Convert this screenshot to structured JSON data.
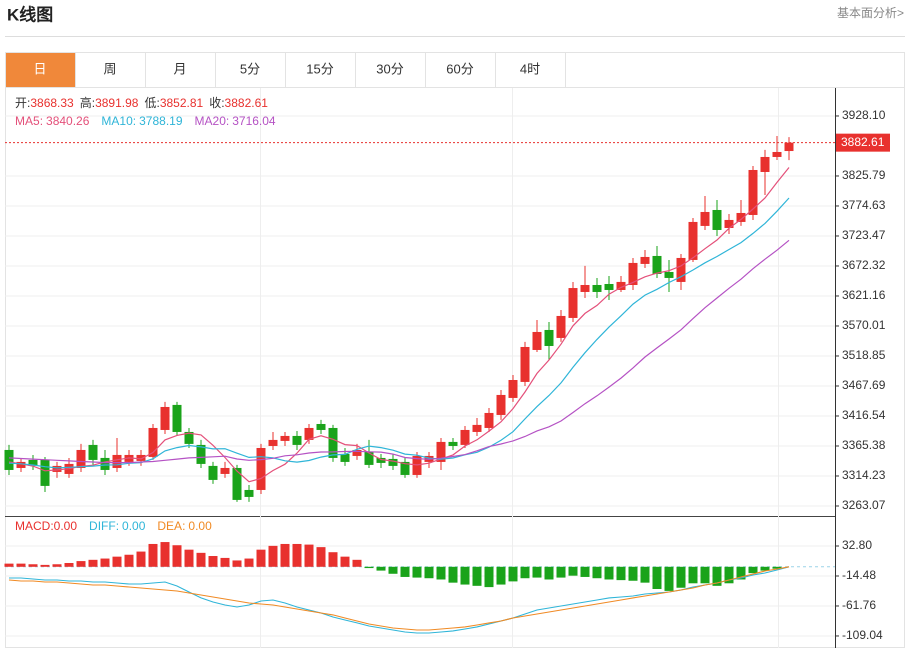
{
  "header": {
    "title": "K线图",
    "link": "基本面分析>"
  },
  "tabs": [
    "日",
    "周",
    "月",
    "5分",
    "15分",
    "30分",
    "60分",
    "4时"
  ],
  "active_tab": 0,
  "chart_data": [
    {
      "type": "candlestick",
      "up_color": "#e8312e",
      "down_color": "#1aa31a",
      "ohlc_info": [
        {
          "label": "开:",
          "value": 3868.33
        },
        {
          "label": "高:",
          "value": 3891.98
        },
        {
          "label": "低:",
          "value": 3852.81
        },
        {
          "label": "收:",
          "value": 3882.61
        }
      ],
      "separator": ":",
      "open": [
        3358.6,
        3327.9,
        3341.6,
        3341.6,
        3321.1,
        3317.7,
        3327.9,
        3367.2,
        3345.0,
        3327.9,
        3338.2,
        3339.9,
        3346.7,
        3392.7,
        3435.4,
        3389.3,
        3367.2,
        3331.4,
        3317.7,
        3327.9,
        3290.4,
        3290.4,
        3365.4,
        3374.0,
        3382.5,
        3375.7,
        3402.9,
        3396.1,
        3351.8,
        3348.4,
        3355.2,
        3345.0,
        3343.3,
        3338.2,
        3316.0,
        3338.2,
        3338.2,
        3372.3,
        3367.2,
        3389.3,
        3396.1,
        3418.3,
        3447.3,
        3474.6,
        3529.1,
        3563.2,
        3549.6,
        3583.7,
        3628.0,
        3639.9,
        3641.6,
        3631.4,
        3639.9,
        3675.8,
        3689.4,
        3662.1,
        3645.1,
        3682.6,
        3740.6,
        3767.8,
        3737.1,
        3747.4,
        3759.3,
        3832.6,
        3858.2,
        3868.33
      ],
      "high": [
        3367.2,
        3345.0,
        3350.1,
        3346.7,
        3338.2,
        3345.0,
        3368.9,
        3375.7,
        3358.6,
        3379.1,
        3358.6,
        3358.6,
        3402.9,
        3440.5,
        3440.5,
        3396.1,
        3375.7,
        3338.2,
        3338.2,
        3333.1,
        3298.9,
        3368.9,
        3389.3,
        3389.3,
        3391.0,
        3402.9,
        3409.8,
        3401.3,
        3362.0,
        3368.9,
        3375.7,
        3351.8,
        3351.8,
        3345.0,
        3355.2,
        3355.2,
        3379.1,
        3379.1,
        3399.5,
        3413.2,
        3430.2,
        3460.9,
        3486.5,
        3542.8,
        3580.3,
        3576.9,
        3597.3,
        3645.1,
        3672.4,
        3651.9,
        3655.3,
        3655.3,
        3686.0,
        3699.6,
        3706.4,
        3682.6,
        3692.8,
        3754.2,
        3791.6,
        3784.9,
        3761.0,
        3784.9,
        3842.8,
        3870.2,
        3894.0,
        3891.98
      ],
      "low": [
        3316.0,
        3321.1,
        3324.5,
        3287.0,
        3310.9,
        3310.9,
        3321.1,
        3333.1,
        3316.0,
        3321.1,
        3331.4,
        3331.4,
        3341.6,
        3385.9,
        3382.5,
        3362.0,
        3327.9,
        3300.7,
        3310.9,
        3270.0,
        3270.0,
        3283.6,
        3358.6,
        3365.4,
        3358.6,
        3368.9,
        3385.9,
        3338.2,
        3331.4,
        3341.6,
        3327.9,
        3327.9,
        3324.5,
        3310.9,
        3310.9,
        3327.9,
        3324.5,
        3358.6,
        3362.0,
        3382.5,
        3389.3,
        3409.8,
        3440.5,
        3467.7,
        3525.7,
        3512.1,
        3542.8,
        3576.9,
        3617.8,
        3617.8,
        3614.4,
        3628.0,
        3631.4,
        3668.9,
        3651.9,
        3628.0,
        3631.4,
        3679.2,
        3733.7,
        3723.5,
        3726.9,
        3740.6,
        3750.8,
        3793.4,
        3853.1,
        3852.81
      ],
      "close": [
        3324.5,
        3338.2,
        3331.4,
        3297.3,
        3331.4,
        3334.8,
        3358.6,
        3341.6,
        3324.5,
        3350.1,
        3350.1,
        3350.1,
        3396.1,
        3431.9,
        3389.3,
        3368.9,
        3334.8,
        3307.5,
        3327.9,
        3273.4,
        3278.5,
        3362.0,
        3375.7,
        3382.5,
        3367.2,
        3396.1,
        3392.7,
        3345.0,
        3338.2,
        3358.6,
        3333.1,
        3336.5,
        3331.4,
        3316.0,
        3348.4,
        3348.4,
        3372.3,
        3365.4,
        3392.7,
        3401.3,
        3421.7,
        3452.4,
        3477.9,
        3534.2,
        3559.8,
        3535.9,
        3587.1,
        3634.7,
        3639.9,
        3628.0,
        3631.4,
        3645.1,
        3677.5,
        3687.7,
        3658.7,
        3651.9,
        3686.0,
        3747.4,
        3764.4,
        3733.7,
        3750.8,
        3762.7,
        3836.0,
        3858.2,
        3866.7,
        3882.61
      ],
      "series": [
        {
          "name": "MA5",
          "color": "#e4507a",
          "current": 3840.26,
          "values": [
            3338,
            3335,
            3331,
            3323,
            3324.6,
            3326.6,
            3330.7,
            3332.7,
            3338.2,
            3341.9,
            3345.0,
            3343.3,
            3354.2,
            3375.7,
            3383.5,
            3387.3,
            3384.2,
            3366.5,
            3345.7,
            3322.5,
            3304.4,
            3309.9,
            3323.5,
            3334.4,
            3353.2,
            3376.7,
            3382.8,
            3376.7,
            3367.8,
            3366.1,
            3353.5,
            3342.3,
            3339.6,
            3335.1,
            3333.1,
            3336.1,
            3343.3,
            3350.1,
            3365.4,
            3376.0,
            3390.7,
            3406.7,
            3429.2,
            3457.5,
            3489.2,
            3512.0,
            3539.0,
            3570.3,
            3591.5,
            3605.1,
            3624.2,
            3635.8,
            3644.4,
            3653.9,
            3660.1,
            3664.2,
            3672.4,
            3686.3,
            3701.7,
            3716.7,
            3736.5,
            3751.8,
            3769.5,
            3788.3,
            3814.9,
            3840.26
          ]
        },
        {
          "name": "MA10",
          "color": "#2fb5d8",
          "current": 3788.19,
          "values": [
            3336,
            3335,
            3333,
            3330,
            3328,
            3329,
            3330,
            3331,
            3333,
            3333.3,
            3335.8,
            3337.0,
            3343.5,
            3357.0,
            3362.7,
            3366.2,
            3363.8,
            3360.4,
            3360.7,
            3353.0,
            3345.9,
            3347.1,
            3345.0,
            3340.1,
            3337.9,
            3340.6,
            3346.4,
            3350.1,
            3351.1,
            3359.7,
            3365.1,
            3362.6,
            3358.2,
            3351.5,
            3349.6,
            3344.8,
            3342.8,
            3344.9,
            3350.3,
            3354.6,
            3363.4,
            3375.0,
            3389.7,
            3411.5,
            3432.6,
            3451.4,
            3472.9,
            3499.8,
            3524.5,
            3547.2,
            3568.1,
            3587.4,
            3607.4,
            3622.7,
            3632.6,
            3644.2,
            3654.1,
            3665.4,
            3677.8,
            3688.4,
            3700.4,
            3712.1,
            3727.9,
            3745.0,
            3765.8,
            3788.19
          ]
        },
        {
          "name": "MA20",
          "color": "#b552c4",
          "current": 3716.04,
          "values": [
            3345,
            3344,
            3343,
            3342,
            3341,
            3340,
            3339,
            3338,
            3337,
            3337,
            3337,
            3338,
            3339,
            3341,
            3343,
            3345,
            3346,
            3347,
            3348,
            3343.2,
            3340.9,
            3342.1,
            3344.3,
            3348.6,
            3350.3,
            3353.4,
            3355.1,
            3355.3,
            3355.9,
            3356.4,
            3355.5,
            3354.9,
            3351.6,
            3345.8,
            3343.8,
            3342.7,
            3344.6,
            3347.5,
            3350.7,
            3357.2,
            3364.3,
            3368.8,
            3374.0,
            3381.5,
            3391.1,
            3398.1,
            3407.9,
            3422.4,
            3437.4,
            3450.9,
            3465.8,
            3481.2,
            3498.6,
            3517.1,
            3532.6,
            3547.8,
            3563.5,
            3582.6,
            3601.2,
            3617.8,
            3634.3,
            3649.8,
            3667.7,
            3683.9,
            3699.2,
            3716.04
          ]
        }
      ],
      "ylim": [
        3247.7,
        3975.8
      ],
      "yticks": [
        3263.07,
        3314.23,
        3365.38,
        3416.54,
        3467.69,
        3518.85,
        3570.01,
        3621.16,
        3672.32,
        3723.47,
        3774.63,
        3825.79,
        {
          "value": 3928.1,
          "label": "3928.10"
        }
      ],
      "grid": true
    },
    {
      "type": "bar",
      "up_color": "#e8312e",
      "down_color": "#1aa31a",
      "info_labels": [
        "MACD:",
        "DIFF:",
        "DEA:"
      ],
      "info_values": [
        0,
        0,
        0
      ],
      "info_value_labels": [
        "0.00",
        "0.00",
        "0.00"
      ],
      "info_colors": [
        "#e8312e",
        "#2fb5d8",
        "#f08a24"
      ],
      "values": [
        5,
        5,
        4,
        3,
        4,
        6,
        9,
        11,
        13,
        16,
        19,
        24,
        36,
        39,
        34,
        27,
        22,
        17,
        14,
        10,
        13,
        27,
        33,
        36,
        36,
        35,
        31,
        23,
        16,
        11,
        -2,
        -6,
        -11,
        -16,
        -17,
        -18,
        -20,
        -25,
        -28,
        -30,
        -32,
        -28,
        -23,
        -18,
        -17,
        -20,
        -17,
        -14,
        -16,
        -18,
        -20,
        -21,
        -22,
        -25,
        -35,
        -38,
        -33,
        -26,
        -26,
        -30,
        -26,
        -20,
        -10,
        -6,
        -3,
        0
      ],
      "series": [
        {
          "name": "DIFF",
          "color": "#2fb5d8",
          "values": [
            -17.6,
            -17.6,
            -19.2,
            -20.8,
            -20.8,
            -22.4,
            -22.4,
            -23.9,
            -23.9,
            -25.5,
            -27.1,
            -27.1,
            -25.5,
            -23.9,
            -30.2,
            -39.7,
            -49.1,
            -55.5,
            -60.2,
            -63.3,
            -60.2,
            -53.9,
            -52.3,
            -57.0,
            -63.3,
            -68.1,
            -72.8,
            -79.1,
            -83.8,
            -88.5,
            -93.3,
            -96.4,
            -99.6,
            -102.7,
            -104.3,
            -104.3,
            -102.7,
            -101.1,
            -98.0,
            -94.8,
            -90.1,
            -85.4,
            -80.7,
            -74.4,
            -68.1,
            -64.9,
            -61.8,
            -58.6,
            -55.5,
            -52.3,
            -49.1,
            -47.6,
            -46.0,
            -42.8,
            -41.3,
            -39.7,
            -36.5,
            -31.8,
            -28.7,
            -25.5,
            -20.8,
            -17.6,
            -12.9,
            -9.7,
            -5.0,
            0
          ]
        },
        {
          "name": "DEA",
          "color": "#f08a24",
          "values": [
            -20.8,
            -22.4,
            -22.4,
            -23.9,
            -23.9,
            -25.5,
            -27.1,
            -28.7,
            -28.7,
            -30.2,
            -31.8,
            -33.4,
            -35.0,
            -36.5,
            -38.1,
            -41.3,
            -44.4,
            -47.6,
            -50.7,
            -53.9,
            -57.0,
            -58.6,
            -60.2,
            -63.3,
            -66.5,
            -69.6,
            -72.8,
            -75.9,
            -80.7,
            -85.4,
            -90.1,
            -93.3,
            -96.4,
            -98.0,
            -99.6,
            -99.6,
            -98.0,
            -96.4,
            -94.8,
            -91.7,
            -88.5,
            -85.4,
            -80.7,
            -77.5,
            -74.4,
            -71.2,
            -68.1,
            -64.9,
            -61.8,
            -58.6,
            -55.5,
            -52.3,
            -49.1,
            -46.0,
            -42.8,
            -39.7,
            -36.5,
            -33.4,
            -28.7,
            -25.5,
            -20.8,
            -16.1,
            -11.3,
            -6.6,
            -3.4,
            0
          ]
        }
      ],
      "ylim": [
        -128,
        78.5
      ],
      "yticks": [
        {
          "value": 32.8,
          "label": "32.80"
        },
        -14.48,
        -61.76,
        -109.04
      ],
      "grid": true
    }
  ]
}
